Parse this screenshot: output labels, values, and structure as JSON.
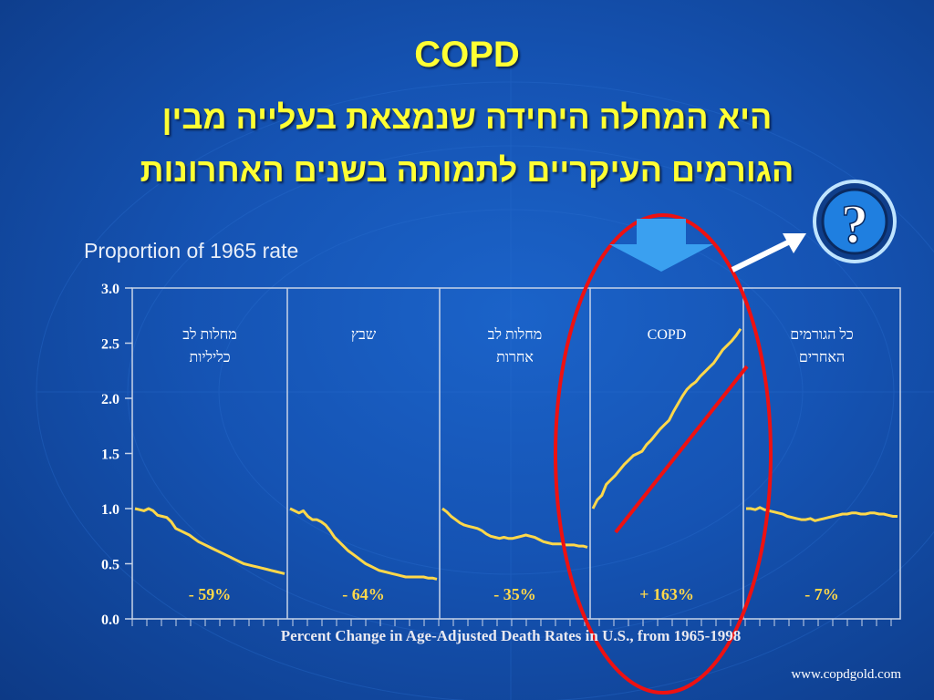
{
  "slide": {
    "title": "COPD",
    "subtitle_line1": "היא המחלה היחידה שנמצאת בעלייה מבין",
    "subtitle_line2": "הגורמים העיקריים לתמותה בשנים האחרונות",
    "source": "www.copdgold.com"
  },
  "chart_data": {
    "type": "line",
    "ylabel": "Proportion of 1965 rate",
    "xlabel": "Percent Change in Age-Adjusted Death Rates in U.S., from 1965-1998",
    "ylim": [
      0,
      3
    ],
    "yticks": [
      "0.0",
      "0.5",
      "1.0",
      "1.5",
      "2.0",
      "2.5",
      "3.0"
    ],
    "panels": [
      {
        "label_line1": "מחלות לב",
        "label_line2": "כליליות",
        "change": "- 59%",
        "values": [
          1.0,
          0.99,
          0.98,
          1.0,
          0.98,
          0.94,
          0.93,
          0.92,
          0.88,
          0.82,
          0.8,
          0.78,
          0.76,
          0.73,
          0.7,
          0.68,
          0.66,
          0.64,
          0.62,
          0.6,
          0.58,
          0.56,
          0.54,
          0.52,
          0.5,
          0.49,
          0.48,
          0.47,
          0.46,
          0.45,
          0.44,
          0.43,
          0.42,
          0.41
        ]
      },
      {
        "label_line1": "שבץ",
        "label_line2": "",
        "change": "- 64%",
        "values": [
          1.0,
          0.98,
          0.96,
          0.98,
          0.93,
          0.9,
          0.9,
          0.88,
          0.85,
          0.8,
          0.74,
          0.7,
          0.66,
          0.62,
          0.59,
          0.56,
          0.53,
          0.5,
          0.48,
          0.46,
          0.44,
          0.43,
          0.42,
          0.41,
          0.4,
          0.39,
          0.38,
          0.38,
          0.38,
          0.38,
          0.38,
          0.37,
          0.37,
          0.36
        ]
      },
      {
        "label_line1": "מחלות לב",
        "label_line2": "אחרות",
        "change": "- 35%",
        "values": [
          1.0,
          0.97,
          0.93,
          0.9,
          0.87,
          0.85,
          0.84,
          0.83,
          0.82,
          0.8,
          0.77,
          0.75,
          0.74,
          0.73,
          0.74,
          0.73,
          0.73,
          0.74,
          0.75,
          0.76,
          0.75,
          0.74,
          0.72,
          0.7,
          0.69,
          0.68,
          0.68,
          0.68,
          0.67,
          0.67,
          0.67,
          0.66,
          0.66,
          0.65
        ]
      },
      {
        "label_line1": "COPD",
        "label_line2": "",
        "change": "+ 163%",
        "values": [
          1.0,
          1.08,
          1.12,
          1.22,
          1.26,
          1.3,
          1.35,
          1.4,
          1.44,
          1.48,
          1.5,
          1.52,
          1.58,
          1.62,
          1.67,
          1.72,
          1.76,
          1.8,
          1.88,
          1.95,
          2.02,
          2.08,
          2.12,
          2.15,
          2.2,
          2.24,
          2.28,
          2.32,
          2.38,
          2.44,
          2.48,
          2.52,
          2.57,
          2.63
        ]
      },
      {
        "label_line1": "כל הגורמים",
        "label_line2": "האחרים",
        "change": "- 7%",
        "values": [
          1.0,
          1.0,
          0.99,
          1.01,
          0.99,
          0.98,
          0.97,
          0.96,
          0.95,
          0.93,
          0.92,
          0.91,
          0.9,
          0.9,
          0.91,
          0.89,
          0.9,
          0.91,
          0.92,
          0.93,
          0.94,
          0.95,
          0.95,
          0.96,
          0.96,
          0.95,
          0.95,
          0.96,
          0.96,
          0.95,
          0.95,
          0.94,
          0.93,
          0.93
        ]
      }
    ]
  },
  "colors": {
    "title": "#ffff33",
    "line": "#ffd84a",
    "change_text": "#ffd84a",
    "highlight": "#ee1111",
    "arrow_blue": "#3aa0f0",
    "gridline": "#c8d4e8"
  },
  "icons": {
    "down_arrow": "down-arrow-icon",
    "pointer_arrow": "white-arrow-icon",
    "help": "question-mark-icon"
  }
}
